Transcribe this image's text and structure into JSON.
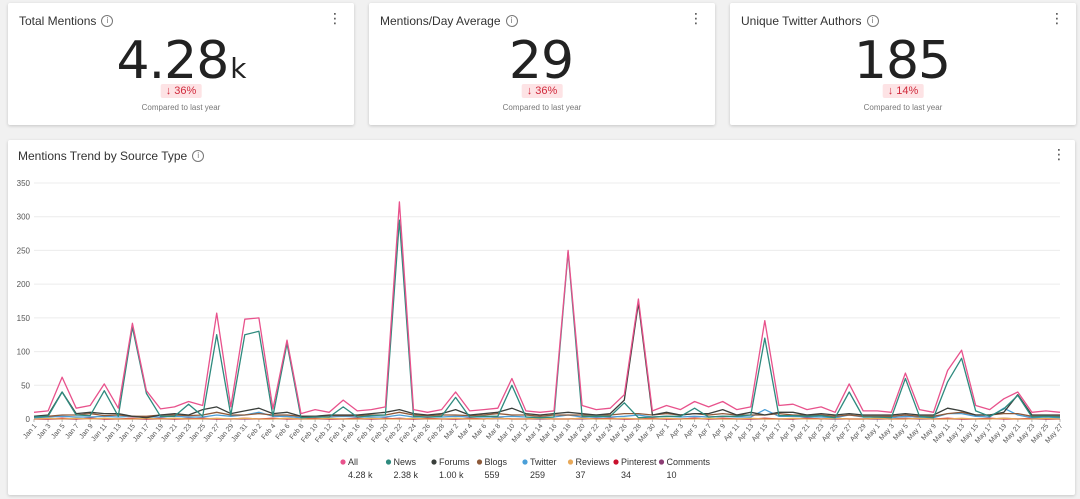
{
  "kpis": [
    {
      "title": "Total Mentions",
      "value": "4.28",
      "unit": "k",
      "delta": "36%",
      "compare": "Compared to last year"
    },
    {
      "title": "Mentions/Day Average",
      "value": "29",
      "unit": "",
      "delta": "36%",
      "compare": "Compared to last year"
    },
    {
      "title": "Unique Twitter Authors",
      "value": "185",
      "unit": "",
      "delta": "14%",
      "compare": "Compared to last year"
    }
  ],
  "chart_title": "Mentions Trend by Source Type",
  "chart_data": {
    "type": "line",
    "ylim": [
      0,
      350
    ],
    "yticks": [
      0,
      50,
      100,
      150,
      200,
      250,
      300,
      350
    ],
    "grid": true,
    "legend_position": "bottom",
    "x": [
      "Jan 1",
      "Jan 3",
      "Jan 5",
      "Jan 7",
      "Jan 9",
      "Jan 11",
      "Jan 13",
      "Jan 15",
      "Jan 17",
      "Jan 19",
      "Jan 21",
      "Jan 23",
      "Jan 25",
      "Jan 27",
      "Jan 29",
      "Jan 31",
      "Feb 2",
      "Feb 4",
      "Feb 6",
      "Feb 8",
      "Feb 10",
      "Feb 12",
      "Feb 14",
      "Feb 16",
      "Feb 18",
      "Feb 20",
      "Feb 22",
      "Feb 24",
      "Feb 26",
      "Feb 28",
      "Mar 2",
      "Mar 4",
      "Mar 6",
      "Mar 8",
      "Mar 10",
      "Mar 12",
      "Mar 14",
      "Mar 16",
      "Mar 18",
      "Mar 20",
      "Mar 22",
      "Mar 24",
      "Mar 26",
      "Mar 28",
      "Mar 30",
      "Apr 1",
      "Apr 3",
      "Apr 5",
      "Apr 7",
      "Apr 9",
      "Apr 11",
      "Apr 13",
      "Apr 15",
      "Apr 17",
      "Apr 19",
      "Apr 21",
      "Apr 23",
      "Apr 25",
      "Apr 27",
      "Apr 29",
      "May 1",
      "May 3",
      "May 5",
      "May 7",
      "May 9",
      "May 11",
      "May 13",
      "May 15",
      "May 17",
      "May 19",
      "May 21",
      "May 23",
      "May 25",
      "May 27"
    ],
    "series": [
      {
        "name": "All",
        "total": "4.28 k",
        "color": "#e8528c",
        "values": [
          10,
          12,
          62,
          16,
          20,
          52,
          16,
          142,
          42,
          15,
          18,
          26,
          20,
          157,
          18,
          148,
          150,
          15,
          117,
          8,
          14,
          10,
          28,
          12,
          14,
          18,
          322,
          14,
          10,
          14,
          40,
          12,
          14,
          16,
          60,
          12,
          10,
          12,
          250,
          20,
          14,
          16,
          36,
          178,
          12,
          20,
          14,
          26,
          18,
          26,
          14,
          18,
          146,
          20,
          22,
          14,
          18,
          10,
          52,
          12,
          12,
          10,
          68,
          14,
          10,
          72,
          102,
          20,
          14,
          30,
          40,
          10,
          12,
          10
        ]
      },
      {
        "name": "News",
        "total": "2.38 k",
        "color": "#2e8a7e",
        "values": [
          3,
          4,
          40,
          6,
          5,
          42,
          4,
          136,
          38,
          4,
          4,
          22,
          4,
          125,
          6,
          125,
          130,
          4,
          112,
          2,
          3,
          3,
          18,
          3,
          5,
          6,
          295,
          4,
          3,
          4,
          32,
          3,
          4,
          4,
          50,
          3,
          2,
          3,
          248,
          4,
          4,
          4,
          24,
          2,
          3,
          4,
          4,
          16,
          3,
          4,
          4,
          6,
          120,
          5,
          5,
          4,
          5,
          2,
          40,
          3,
          3,
          2,
          60,
          4,
          2,
          55,
          90,
          12,
          4,
          15,
          35,
          3,
          4,
          3
        ]
      },
      {
        "name": "Forums",
        "total": "1.00 k",
        "color": "#3a3f3b",
        "values": [
          4,
          6,
          40,
          8,
          10,
          8,
          8,
          4,
          2,
          6,
          8,
          6,
          14,
          18,
          8,
          12,
          16,
          8,
          10,
          4,
          4,
          6,
          6,
          6,
          8,
          10,
          14,
          8,
          6,
          8,
          14,
          6,
          8,
          10,
          16,
          8,
          6,
          8,
          10,
          8,
          6,
          8,
          28,
          172,
          6,
          10,
          6,
          8,
          8,
          14,
          6,
          10,
          6,
          10,
          10,
          6,
          8,
          6,
          8,
          6,
          6,
          6,
          8,
          6,
          6,
          16,
          12,
          6,
          6,
          10,
          36,
          6,
          6,
          6
        ]
      },
      {
        "name": "Blogs",
        "total": "559",
        "color": "#8e5a3a",
        "values": [
          3,
          4,
          6,
          6,
          8,
          5,
          6,
          4,
          4,
          6,
          6,
          5,
          6,
          10,
          6,
          6,
          8,
          6,
          6,
          4,
          4,
          5,
          5,
          5,
          6,
          6,
          10,
          6,
          5,
          6,
          6,
          5,
          6,
          8,
          6,
          6,
          4,
          6,
          6,
          6,
          6,
          6,
          8,
          8,
          6,
          8,
          6,
          8,
          6,
          8,
          6,
          6,
          6,
          8,
          6,
          6,
          6,
          4,
          6,
          4,
          4,
          4,
          6,
          4,
          4,
          8,
          10,
          6,
          6,
          8,
          8,
          4,
          4,
          4
        ]
      },
      {
        "name": "Twitter",
        "total": "259",
        "color": "#4a9fd8",
        "values": [
          2,
          3,
          4,
          3,
          3,
          4,
          3,
          4,
          3,
          3,
          4,
          3,
          3,
          6,
          4,
          6,
          10,
          4,
          4,
          2,
          3,
          3,
          4,
          3,
          3,
          3,
          6,
          3,
          3,
          3,
          4,
          3,
          3,
          3,
          4,
          3,
          2,
          3,
          6,
          3,
          3,
          3,
          4,
          6,
          3,
          4,
          3,
          4,
          3,
          4,
          3,
          3,
          14,
          4,
          4,
          3,
          3,
          2,
          6,
          3,
          3,
          2,
          4,
          3,
          2,
          8,
          8,
          4,
          3,
          16,
          6,
          2,
          3,
          2
        ]
      },
      {
        "name": "Reviews",
        "total": "37",
        "color": "#e8a95a",
        "values": [
          0,
          1,
          0,
          1,
          0,
          1,
          0,
          0,
          1,
          0,
          1,
          0,
          0,
          1,
          0,
          1,
          0,
          0,
          1,
          0,
          0,
          1,
          0,
          0,
          1,
          0,
          0,
          1,
          0,
          0,
          1,
          0,
          0,
          1,
          0,
          0,
          1,
          0,
          0,
          1,
          0,
          0,
          1,
          0,
          0,
          1,
          0,
          0,
          1,
          0,
          0,
          1,
          0,
          0,
          1,
          0,
          0,
          1,
          0,
          0,
          1,
          0,
          0,
          1,
          0,
          0,
          1,
          0,
          0,
          1,
          0,
          0,
          1,
          0
        ]
      },
      {
        "name": "Pinterest",
        "total": "34",
        "color": "#c9102d",
        "values": [
          0,
          0,
          1,
          0,
          1,
          0,
          0,
          1,
          0,
          1,
          0,
          0,
          1,
          0,
          0,
          1,
          0,
          1,
          0,
          0,
          1,
          0,
          0,
          1,
          0,
          1,
          0,
          0,
          1,
          0,
          0,
          1,
          0,
          1,
          0,
          0,
          1,
          0,
          0,
          1,
          0,
          1,
          0,
          0,
          1,
          0,
          0,
          1,
          0,
          1,
          0,
          0,
          1,
          0,
          0,
          1,
          0,
          1,
          0,
          0,
          1,
          0,
          0,
          1,
          0,
          1,
          0,
          0,
          1,
          0,
          0,
          1,
          0,
          0
        ]
      },
      {
        "name": "Comments",
        "total": "10",
        "color": "#8c3d74",
        "values": [
          0,
          0,
          0,
          0,
          1,
          0,
          0,
          0,
          0,
          0,
          0,
          1,
          0,
          0,
          0,
          0,
          0,
          0,
          1,
          0,
          0,
          0,
          0,
          0,
          0,
          0,
          1,
          0,
          0,
          0,
          0,
          0,
          0,
          1,
          0,
          0,
          0,
          0,
          0,
          0,
          1,
          0,
          0,
          0,
          0,
          0,
          0,
          1,
          0,
          0,
          0,
          0,
          0,
          0,
          0,
          1,
          0,
          0,
          0,
          0,
          0,
          0,
          1,
          0,
          0,
          0,
          0,
          0,
          0,
          1,
          0,
          0,
          0,
          0
        ]
      }
    ]
  }
}
